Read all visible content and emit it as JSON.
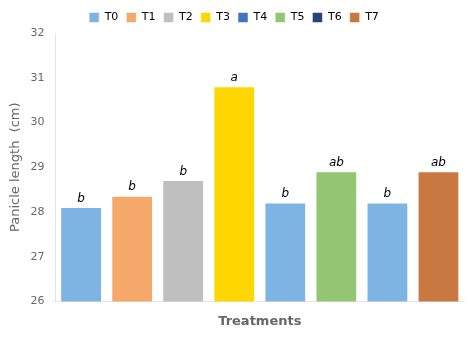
{
  "chart_data": {
    "type": "bar",
    "categories": [
      "T0",
      "T1",
      "T2",
      "T3",
      "T4",
      "T5",
      "T6",
      "T7"
    ],
    "values": [
      28.1,
      28.35,
      28.7,
      30.8,
      28.2,
      28.9,
      28.2,
      28.9
    ],
    "colors": [
      "#7EB4E3",
      "#F4A86A",
      "#BFBFBF",
      "#FFD700",
      "#7EB4E3",
      "#93C572",
      "#7EB4E3",
      "#C87941"
    ],
    "annotations": [
      "b",
      "b",
      "b",
      "a",
      "b",
      "ab",
      "b",
      "ab"
    ],
    "legend_colors": [
      "#7EB4E3",
      "#F4A86A",
      "#BFBFBF",
      "#FFD700",
      "#4472C4",
      "#93C572",
      "#264478",
      "#C87941"
    ],
    "xlabel": "Treatments",
    "ylabel": "Panicle length  (cm)",
    "ylim": [
      26,
      32
    ],
    "yticks": [
      26,
      27,
      28,
      29,
      30,
      31,
      32
    ],
    "grid": false,
    "legend": "top",
    "tick_labels": "y"
  }
}
